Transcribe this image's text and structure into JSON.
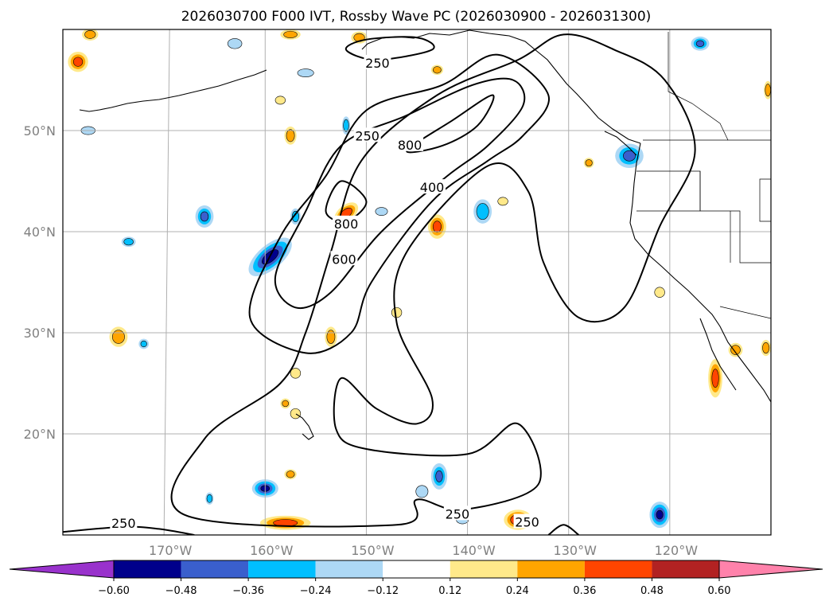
{
  "chart_data": {
    "type": "contour-map",
    "title": "2026030700 F000 IVT, Rossby Wave PC (2026030900 - 2026031300)",
    "lon_range": [
      -180,
      -110
    ],
    "lat_range": [
      10,
      60
    ],
    "lat_ticks": [
      {
        "value": 20,
        "label": "20°N"
      },
      {
        "value": 30,
        "label": "30°N"
      },
      {
        "value": 40,
        "label": "40°N"
      },
      {
        "value": 50,
        "label": "50°N"
      }
    ],
    "lon_ticks": [
      {
        "value": -170,
        "label": "170°W"
      },
      {
        "value": -160,
        "label": "160°W"
      },
      {
        "value": -150,
        "label": "150°W"
      },
      {
        "value": -140,
        "label": "140°W"
      },
      {
        "value": -130,
        "label": "130°W"
      },
      {
        "value": -120,
        "label": "120°W"
      }
    ],
    "grid": true,
    "ivt_contour_levels": [
      250,
      400,
      600,
      800
    ],
    "contour_labels": [
      {
        "text": "250",
        "lon": -148.9,
        "lat": 56.7
      },
      {
        "text": "250",
        "lon": -149.9,
        "lat": 49.5
      },
      {
        "text": "800",
        "lon": -145.7,
        "lat": 48.6
      },
      {
        "text": "400",
        "lon": -143.5,
        "lat": 44.4
      },
      {
        "text": "800",
        "lon": -152.0,
        "lat": 40.8
      },
      {
        "text": "600",
        "lon": -152.2,
        "lat": 37.3
      },
      {
        "text": "250",
        "lon": -174.0,
        "lat": 11.2
      },
      {
        "text": "250",
        "lon": -141.0,
        "lat": 12.1
      },
      {
        "text": "250",
        "lon": -134.1,
        "lat": 11.3
      }
    ],
    "ivt_contours": [
      {
        "level": 250,
        "points": [
          [
            -168.0,
            12.0
          ],
          [
            -166.0,
            19.5
          ],
          [
            -158.5,
            25.0
          ],
          [
            -156.0,
            30.0
          ],
          [
            -153.5,
            38.0
          ],
          [
            -150.5,
            47.0
          ],
          [
            -143.0,
            53.5
          ],
          [
            -135.0,
            57.0
          ],
          [
            -130.5,
            59.5
          ],
          [
            -125.5,
            58.0
          ],
          [
            -120.5,
            55.0
          ],
          [
            -117.5,
            48.0
          ],
          [
            -121.0,
            40.5
          ],
          [
            -124.5,
            32.5
          ],
          [
            -129.0,
            31.5
          ],
          [
            -132.5,
            37.0
          ],
          [
            -134.0,
            44.0
          ],
          [
            -138.0,
            46.5
          ],
          [
            -146.0,
            38.0
          ],
          [
            -147.0,
            31.0
          ],
          [
            -143.5,
            23.5
          ],
          [
            -145.0,
            21.0
          ],
          [
            -149.0,
            22.5
          ],
          [
            -152.5,
            25.5
          ],
          [
            -153.0,
            20.5
          ],
          [
            -150.0,
            18.5
          ],
          [
            -140.0,
            18.0
          ],
          [
            -135.0,
            21.0
          ],
          [
            -133.0,
            15.0
          ],
          [
            -140.5,
            12.5
          ],
          [
            -145.0,
            13.5
          ],
          [
            -147.0,
            11.0
          ]
        ]
      },
      {
        "level": 400,
        "points": [
          [
            -161.5,
            31.5
          ],
          [
            -158.5,
            39.5
          ],
          [
            -154.0,
            45.5
          ],
          [
            -150.0,
            52.0
          ],
          [
            -142.5,
            54.5
          ],
          [
            -137.0,
            57.5
          ],
          [
            -132.0,
            53.5
          ],
          [
            -134.5,
            49.5
          ],
          [
            -138.0,
            47.0
          ],
          [
            -143.5,
            43.0
          ],
          [
            -149.5,
            35.0
          ],
          [
            -151.5,
            30.0
          ],
          [
            -156.0,
            28.0
          ]
        ]
      },
      {
        "level": 600,
        "points": [
          [
            -159.0,
            35.5
          ],
          [
            -156.0,
            42.0
          ],
          [
            -152.5,
            48.5
          ],
          [
            -146.0,
            51.5
          ],
          [
            -139.5,
            54.5
          ],
          [
            -135.5,
            55.0
          ],
          [
            -134.5,
            52.5
          ],
          [
            -138.0,
            48.5
          ],
          [
            -142.0,
            45.5
          ],
          [
            -148.5,
            40.0
          ],
          [
            -153.5,
            34.0
          ],
          [
            -157.0,
            32.5
          ]
        ]
      },
      {
        "level": 800,
        "points": [
          [
            -154.0,
            42.0
          ],
          [
            -152.5,
            45.0
          ],
          [
            -150.0,
            43.0
          ],
          [
            -152.0,
            41.0
          ]
        ]
      },
      {
        "level": 800,
        "points": [
          [
            -146.0,
            48.0
          ],
          [
            -141.5,
            51.0
          ],
          [
            -137.5,
            53.5
          ],
          [
            -139.0,
            50.5
          ],
          [
            -142.5,
            48.5
          ]
        ]
      },
      {
        "level": 250,
        "points": [
          [
            -152.0,
            58.0
          ],
          [
            -149.0,
            57.0
          ],
          [
            -143.5,
            58.0
          ],
          [
            -145.0,
            59.2
          ],
          [
            -150.0,
            59.0
          ]
        ]
      },
      {
        "level": 250,
        "points": [
          [
            -180.0,
            10.3
          ],
          [
            -174.0,
            10.8
          ],
          [
            -170.5,
            10.6
          ],
          [
            -167.0,
            10.0
          ]
        ]
      },
      {
        "level": 250,
        "points": [
          [
            -132.0,
            10.0
          ],
          [
            -130.5,
            11.0
          ],
          [
            -129.0,
            10.0
          ]
        ]
      }
    ],
    "pc_levels": [
      -0.6,
      -0.48,
      -0.36,
      -0.24,
      -0.12,
      0.12,
      0.24,
      0.36,
      0.48,
      0.6
    ],
    "pc_colors": [
      "#9932cc",
      "#00008b",
      "#3a5fcd",
      "#00bfff",
      "#add8f5",
      "#ffffff",
      "#ffe98a",
      "#ffa500",
      "#ff4500",
      "#b22222",
      "#ff82ab"
    ],
    "colorbar_tick_labels": [
      "−0.60",
      "−0.48",
      "−0.36",
      "−0.24",
      "−0.12",
      "0.12",
      "0.24",
      "0.36",
      "0.48",
      "0.60"
    ],
    "pc_blobs": [
      {
        "lon": -159.5,
        "lat": 37.5,
        "rx_deg": 2.6,
        "ry_deg": 1.2,
        "rot": -40,
        "value": -0.52
      },
      {
        "lon": -166.0,
        "lat": 41.5,
        "rx_deg": 0.9,
        "ry_deg": 1.1,
        "rot": 0,
        "value": -0.36
      },
      {
        "lon": -173.5,
        "lat": 39.0,
        "rx_deg": 0.7,
        "ry_deg": 0.5,
        "rot": 0,
        "value": -0.3
      },
      {
        "lon": -157.0,
        "lat": 41.5,
        "rx_deg": 0.5,
        "ry_deg": 0.8,
        "rot": 0,
        "value": -0.3
      },
      {
        "lon": -152.0,
        "lat": 50.5,
        "rx_deg": 0.4,
        "ry_deg": 0.9,
        "rot": 0,
        "value": -0.3
      },
      {
        "lon": -124.0,
        "lat": 47.5,
        "rx_deg": 1.4,
        "ry_deg": 1.2,
        "rot": 0,
        "value": -0.36
      },
      {
        "lon": -117.0,
        "lat": 58.6,
        "rx_deg": 0.9,
        "ry_deg": 0.7,
        "rot": 0,
        "value": -0.36
      },
      {
        "lon": -121.0,
        "lat": 12.0,
        "rx_deg": 1.0,
        "ry_deg": 1.3,
        "rot": 0,
        "value": -0.48
      },
      {
        "lon": -160.0,
        "lat": 14.6,
        "rx_deg": 1.3,
        "ry_deg": 0.9,
        "rot": 0,
        "value": -0.48
      },
      {
        "lon": -142.8,
        "lat": 15.8,
        "rx_deg": 0.8,
        "ry_deg": 1.3,
        "rot": 0,
        "value": -0.36
      },
      {
        "lon": -165.5,
        "lat": 13.6,
        "rx_deg": 0.4,
        "ry_deg": 0.6,
        "rot": 0,
        "value": -0.3
      },
      {
        "lon": -138.5,
        "lat": 42.0,
        "rx_deg": 0.9,
        "ry_deg": 1.2,
        "rot": 0,
        "value": -0.3
      },
      {
        "lon": -156.0,
        "lat": 55.7,
        "rx_deg": 0.8,
        "ry_deg": 0.4,
        "rot": 0,
        "value": -0.2
      },
      {
        "lon": -163.0,
        "lat": 58.6,
        "rx_deg": 0.7,
        "ry_deg": 0.5,
        "rot": 0,
        "value": -0.2
      },
      {
        "lon": -144.5,
        "lat": 14.3,
        "rx_deg": 0.6,
        "ry_deg": 0.6,
        "rot": 0,
        "value": -0.2
      },
      {
        "lon": -140.5,
        "lat": 11.5,
        "rx_deg": 0.6,
        "ry_deg": 0.4,
        "rot": 0,
        "value": -0.2
      },
      {
        "lon": -177.5,
        "lat": 50.0,
        "rx_deg": 0.7,
        "ry_deg": 0.4,
        "rot": 0,
        "value": -0.2
      },
      {
        "lon": -148.5,
        "lat": 42.0,
        "rx_deg": 0.6,
        "ry_deg": 0.4,
        "rot": 0,
        "value": -0.2
      },
      {
        "lon": -172.0,
        "lat": 28.9,
        "rx_deg": 0.5,
        "ry_deg": 0.5,
        "rot": 0,
        "value": -0.24
      },
      {
        "lon": -152.0,
        "lat": 41.8,
        "rx_deg": 1.4,
        "ry_deg": 0.8,
        "rot": -40,
        "value": 0.42
      },
      {
        "lon": -143.0,
        "lat": 40.5,
        "rx_deg": 0.9,
        "ry_deg": 1.2,
        "rot": 0,
        "value": 0.38
      },
      {
        "lon": -153.5,
        "lat": 29.6,
        "rx_deg": 0.6,
        "ry_deg": 1.0,
        "rot": 0,
        "value": 0.3
      },
      {
        "lon": -174.5,
        "lat": 29.6,
        "rx_deg": 0.9,
        "ry_deg": 1.0,
        "rot": 0,
        "value": 0.3
      },
      {
        "lon": -178.5,
        "lat": 56.8,
        "rx_deg": 1.0,
        "ry_deg": 1.0,
        "rot": 0,
        "value": 0.38
      },
      {
        "lon": -157.5,
        "lat": 49.5,
        "rx_deg": 0.6,
        "ry_deg": 0.9,
        "rot": 0,
        "value": 0.3
      },
      {
        "lon": -177.3,
        "lat": 59.5,
        "rx_deg": 0.8,
        "ry_deg": 0.6,
        "rot": 0,
        "value": 0.3
      },
      {
        "lon": -158.0,
        "lat": 11.2,
        "rx_deg": 2.5,
        "ry_deg": 0.7,
        "rot": 0,
        "value": 0.4
      },
      {
        "lon": -135.0,
        "lat": 11.5,
        "rx_deg": 1.4,
        "ry_deg": 1.0,
        "rot": 0,
        "value": 0.45
      },
      {
        "lon": -115.5,
        "lat": 25.5,
        "rx_deg": 0.7,
        "ry_deg": 1.9,
        "rot": 0,
        "value": 0.4
      },
      {
        "lon": -150.7,
        "lat": 59.2,
        "rx_deg": 0.8,
        "ry_deg": 0.6,
        "rot": 0,
        "value": 0.3
      },
      {
        "lon": -113.5,
        "lat": 28.3,
        "rx_deg": 0.7,
        "ry_deg": 0.7,
        "rot": 0,
        "value": 0.3
      },
      {
        "lon": -110.3,
        "lat": 54.0,
        "rx_deg": 0.4,
        "ry_deg": 0.9,
        "rot": 0,
        "value": 0.3
      },
      {
        "lon": -157.5,
        "lat": 16.0,
        "rx_deg": 0.6,
        "ry_deg": 0.5,
        "rot": 0,
        "value": 0.3
      },
      {
        "lon": -158.5,
        "lat": 53.0,
        "rx_deg": 0.5,
        "ry_deg": 0.4,
        "rot": 0,
        "value": 0.2
      },
      {
        "lon": -136.5,
        "lat": 43.0,
        "rx_deg": 0.5,
        "ry_deg": 0.4,
        "rot": 0,
        "value": 0.2
      },
      {
        "lon": -143.0,
        "lat": 56.0,
        "rx_deg": 0.6,
        "ry_deg": 0.5,
        "rot": 0,
        "value": 0.3
      },
      {
        "lon": -128.0,
        "lat": 46.8,
        "rx_deg": 0.5,
        "ry_deg": 0.5,
        "rot": 0,
        "value": 0.3
      },
      {
        "lon": -121.0,
        "lat": 34.0,
        "rx_deg": 0.5,
        "ry_deg": 0.5,
        "rot": 0,
        "value": 0.2
      },
      {
        "lon": -147.0,
        "lat": 32.0,
        "rx_deg": 0.5,
        "ry_deg": 0.5,
        "rot": 0,
        "value": 0.2
      },
      {
        "lon": -157.0,
        "lat": 26.0,
        "rx_deg": 0.5,
        "ry_deg": 0.5,
        "rot": 0,
        "value": 0.2
      },
      {
        "lon": -158.0,
        "lat": 23.0,
        "rx_deg": 0.5,
        "ry_deg": 0.5,
        "rot": 0,
        "value": 0.26
      },
      {
        "lon": -157.0,
        "lat": 22.0,
        "rx_deg": 0.5,
        "ry_deg": 0.5,
        "rot": 0,
        "value": 0.2
      },
      {
        "lon": -157.5,
        "lat": 59.5,
        "rx_deg": 1.0,
        "ry_deg": 0.5,
        "rot": 0,
        "value": 0.3
      },
      {
        "lon": -110.5,
        "lat": 28.5,
        "rx_deg": 0.5,
        "ry_deg": 0.8,
        "rot": 0,
        "value": 0.3
      }
    ]
  }
}
